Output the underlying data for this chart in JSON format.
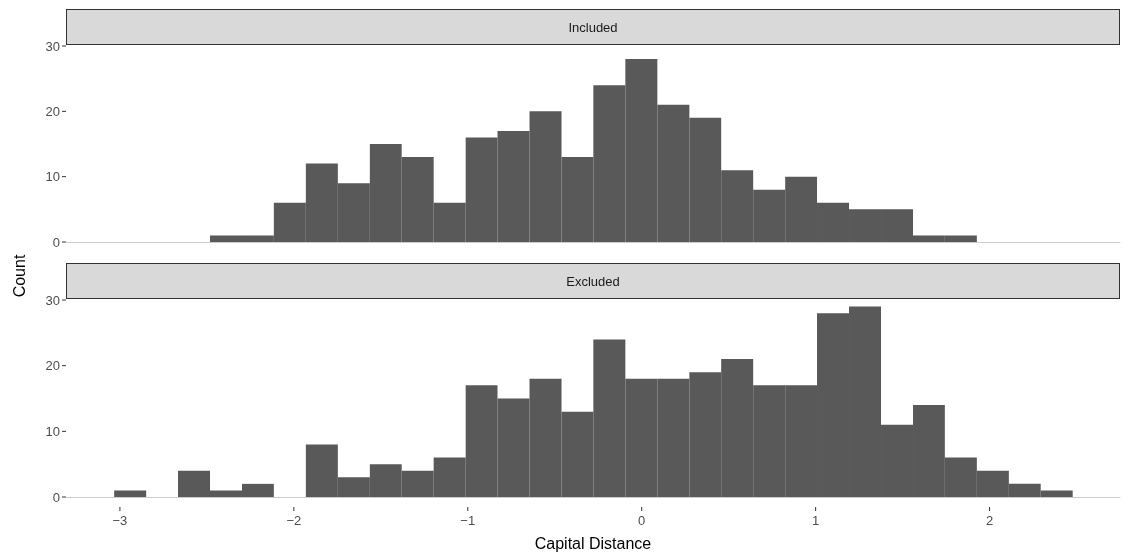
{
  "chart_data": [
    {
      "type": "histogram",
      "title": "Included",
      "ylabel": "Count",
      "color": "#595959",
      "tick_labels": "y",
      "grid": false,
      "bins": [
        -3.033,
        -2.849,
        -2.666,
        -2.482,
        -2.298,
        -2.115,
        -1.931,
        -1.747,
        -1.563,
        -1.38,
        -1.196,
        -1.012,
        -0.829,
        -0.645,
        -0.461,
        -0.278,
        -0.094,
        0.09,
        0.274,
        0.457,
        0.641,
        0.825,
        1.008,
        1.192,
        1.376,
        1.56,
        1.743,
        1.927,
        2.111,
        2.294,
        2.478
      ],
      "values": [
        0,
        0,
        0,
        1,
        1,
        6,
        12,
        9,
        15,
        13,
        6,
        16,
        17,
        20,
        13,
        24,
        28,
        21,
        19,
        11,
        8,
        10,
        6,
        5,
        5,
        1,
        1,
        0,
        0,
        0
      ],
      "xlim": [
        -3.31,
        2.75
      ],
      "ylim": [
        0,
        30
      ],
      "yticks": [
        0,
        10,
        20,
        30
      ]
    },
    {
      "type": "histogram",
      "title": "Excluded",
      "xlabel": "Capital Distance",
      "color": "#595959",
      "grid": false,
      "bins": [
        -3.033,
        -2.849,
        -2.666,
        -2.482,
        -2.298,
        -2.115,
        -1.931,
        -1.747,
        -1.563,
        -1.38,
        -1.196,
        -1.012,
        -0.829,
        -0.645,
        -0.461,
        -0.278,
        -0.094,
        0.09,
        0.274,
        0.457,
        0.641,
        0.825,
        1.008,
        1.192,
        1.376,
        1.56,
        1.743,
        1.927,
        2.111,
        2.294,
        2.478
      ],
      "values": [
        1,
        0,
        4,
        1,
        2,
        0,
        8,
        3,
        5,
        4,
        6,
        17,
        15,
        18,
        13,
        24,
        18,
        18,
        19,
        21,
        17,
        17,
        28,
        29,
        11,
        14,
        6,
        4,
        2,
        1
      ],
      "xlim": [
        -3.31,
        2.75
      ],
      "xticks": [
        {
          "value": -3,
          "label": "−3"
        },
        {
          "value": -2,
          "label": "−2"
        },
        {
          "value": -1,
          "label": "−1"
        },
        0,
        1,
        2
      ],
      "ylim": [
        0,
        30
      ],
      "yticks": [
        0,
        10,
        20,
        30
      ]
    }
  ]
}
